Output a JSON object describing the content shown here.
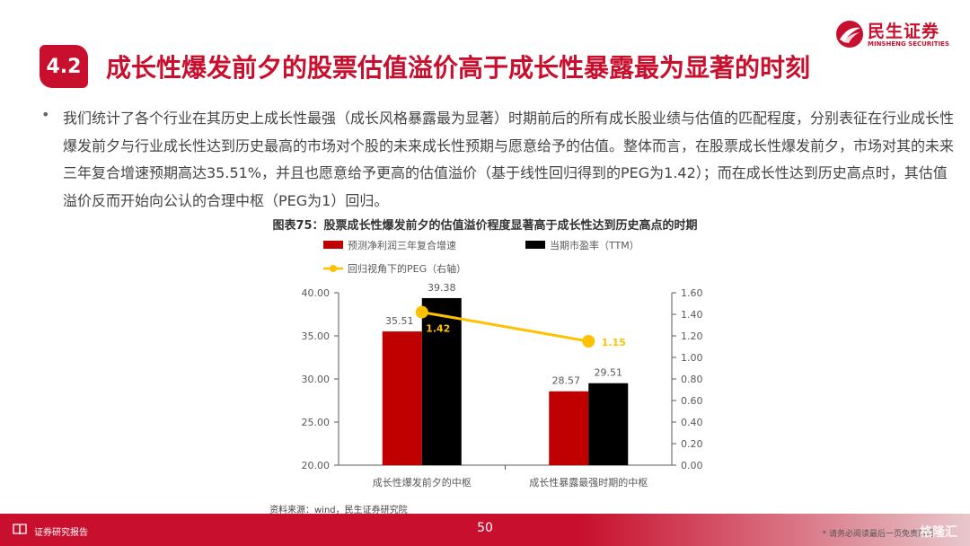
{
  "header": {
    "logo_cn": "民生证券",
    "logo_en": "MINSHENG SECURITIES",
    "section_number": "4.2",
    "title": "成长性爆发前夕的股票估值溢价高于成长性暴露最为显著的时刻"
  },
  "body": {
    "bullet": "•",
    "paragraph": "我们统计了各个行业在其历史上成长性最强（成长风格暴露最为显著）时期前后的所有成长股业绩与估值的匹配程度，分别表征在行业成长性爆发前夕与行业成长性达到历史最高的市场对个股的未来成长性预期与愿意给予的估值。整体而言，在股票成长性爆发前夕，市场对其的未来三年复合增速预期高达35.51%，并且也愿意给予更高的估值溢价（基于线性回归得到的PEG为1.42）；而在成长性达到历史高点时，其估值溢价反而开始向公认的合理中枢（PEG为1）回归。"
  },
  "chart_caption": "图表75：股票成长性爆发前夕的估值溢价程度显著高于成长性达到历史高点的时期",
  "chart_data": {
    "type": "bar",
    "categories": [
      "成长性爆发前夕的中枢",
      "成长性暴露最强时期的中枢"
    ],
    "series": [
      {
        "name": "预测净利润三年复合增速",
        "type": "bar",
        "axis": "left",
        "color": "#c00000",
        "values": [
          35.51,
          28.57
        ],
        "labels": [
          "35.51",
          "28.57"
        ]
      },
      {
        "name": "当期市盈率（TTM）",
        "type": "bar",
        "axis": "left",
        "color": "#000000",
        "values": [
          39.38,
          29.51
        ],
        "labels": [
          "39.38",
          "29.51"
        ]
      },
      {
        "name": "回归视角下的PEG（右轴）",
        "type": "line",
        "axis": "right",
        "color": "#ffc000",
        "values": [
          1.42,
          1.15
        ],
        "labels": [
          "1.42",
          "1.15"
        ]
      }
    ],
    "y_left": {
      "min": 20,
      "max": 40,
      "ticks": [
        "20.00",
        "25.00",
        "30.00",
        "35.00",
        "40.00"
      ],
      "tick_values": [
        20,
        25,
        30,
        35,
        40
      ]
    },
    "y_right": {
      "min": 0,
      "max": 1.6,
      "ticks": [
        "0.00",
        "0.20",
        "0.40",
        "0.60",
        "0.80",
        "1.00",
        "1.20",
        "1.40",
        "1.60"
      ],
      "tick_values": [
        0,
        0.2,
        0.4,
        0.6,
        0.8,
        1.0,
        1.2,
        1.4,
        1.6
      ]
    },
    "grid": false,
    "legend_position": "top-left"
  },
  "source": "资料来源：wind，民生证券研究院",
  "footer": {
    "label": "证券研究报告",
    "page_number": "50",
    "disclaimer": "* 请务必阅读最后一页免责声明",
    "watermark": "格隆汇"
  },
  "colors": {
    "brand": "#c8102e",
    "bar1": "#c00000",
    "bar2": "#000000",
    "line": "#ffc000"
  }
}
